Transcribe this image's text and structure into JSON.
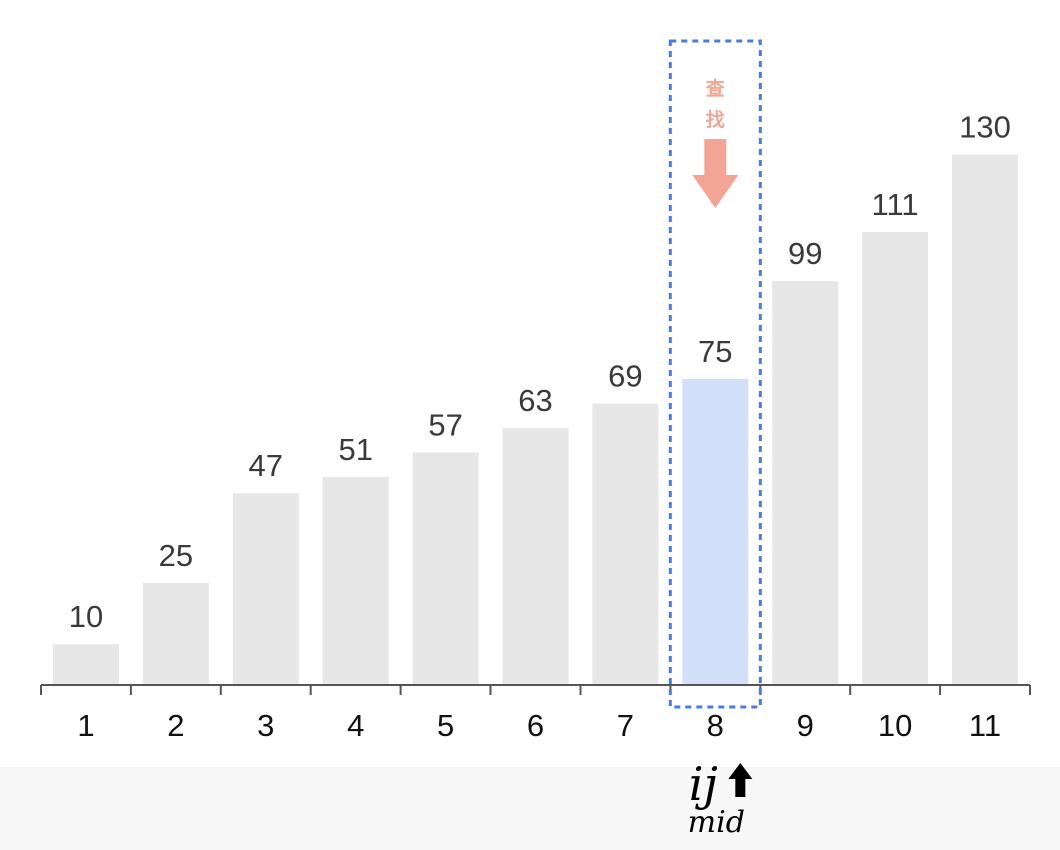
{
  "chart_data": {
    "type": "bar",
    "categories": [
      "1",
      "2",
      "3",
      "4",
      "5",
      "6",
      "7",
      "8",
      "9",
      "10",
      "11"
    ],
    "values": [
      10,
      25,
      47,
      51,
      57,
      63,
      69,
      75,
      99,
      111,
      130
    ],
    "title": "",
    "xlabel": "",
    "ylabel": "",
    "highlight_category": "8",
    "grid": false,
    "legend": "none"
  },
  "annotations": {
    "search_label_line1": "查",
    "search_label_line2": "找",
    "pointer_label": "ij",
    "mid_label": "mid"
  },
  "colors": {
    "bar": "#e7e7e7",
    "highlight_bar": "#d3e0fa",
    "search_box_border": "#4a7be0",
    "search_arrow": "#f2a594",
    "axis": "#555555",
    "bottom_band": "#f7f7f7"
  },
  "icons": {
    "search_arrow": "down-arrow-icon",
    "pointer_arrow": "up-arrow-icon"
  }
}
